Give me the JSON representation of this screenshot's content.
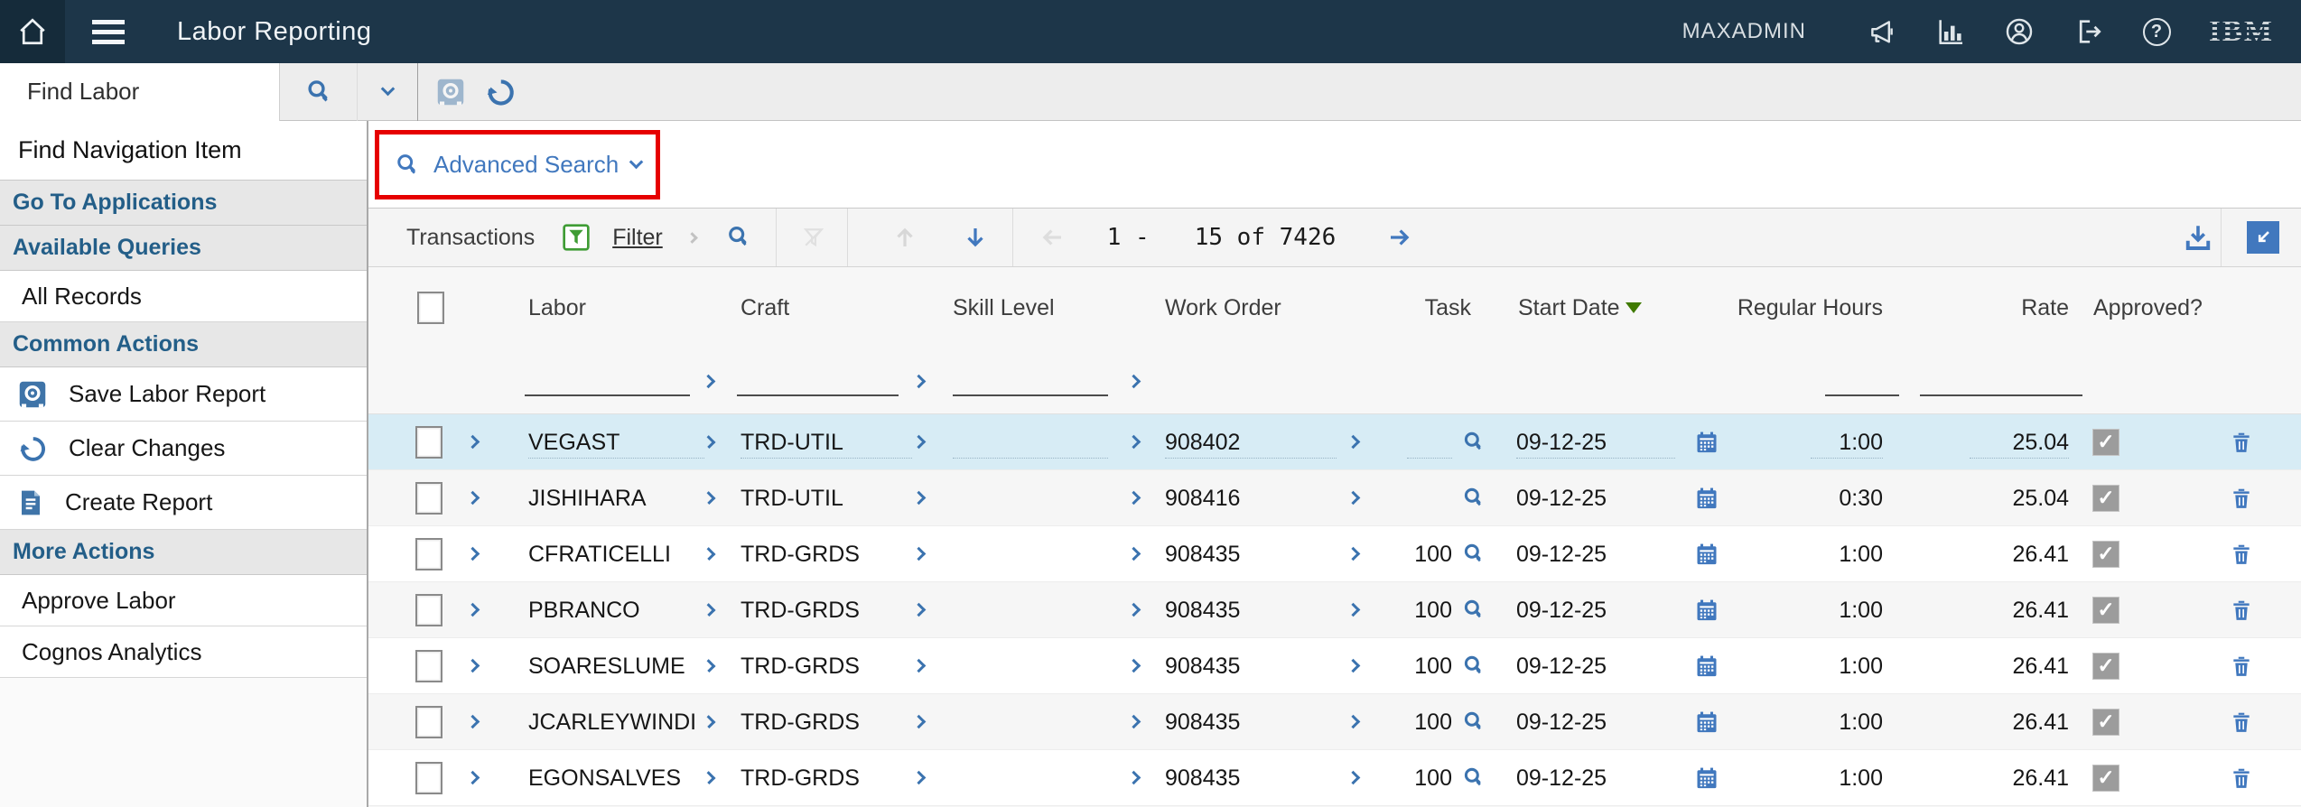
{
  "topbar": {
    "title": "Labor Reporting",
    "username": "MAXADMIN",
    "icons": [
      "home-icon",
      "menu-icon",
      "announcements-icon",
      "reports-icon",
      "profile-icon",
      "sign-out-icon",
      "help-icon",
      "ibm-logo"
    ]
  },
  "findbar": {
    "value": "Find Labor",
    "icons": [
      "search-icon",
      "chevron-down-icon",
      "save-icon-disabled",
      "undo-icon"
    ]
  },
  "sidebar": {
    "search_placeholder": "Find Navigation Item",
    "sections": [
      {
        "label": "Go To Applications",
        "type": "header"
      },
      {
        "label": "Available Queries",
        "type": "header"
      },
      {
        "label": "All Records",
        "type": "item"
      },
      {
        "label": "Common Actions",
        "type": "header"
      },
      {
        "label": "Save Labor Report",
        "type": "item",
        "icon": "save-icon"
      },
      {
        "label": "Clear Changes",
        "type": "item",
        "icon": "undo-icon"
      },
      {
        "label": "Create Report",
        "type": "item",
        "icon": "report-icon"
      },
      {
        "label": "More Actions",
        "type": "header"
      },
      {
        "label": "Approve Labor",
        "type": "item"
      },
      {
        "label": "Cognos Analytics",
        "type": "item"
      }
    ]
  },
  "advanced_search": {
    "label": "Advanced Search",
    "icons": [
      "search-icon",
      "chevron-down-icon"
    ],
    "annotation": "red-box-highlight"
  },
  "toolbar": {
    "table_title": "Transactions",
    "filter_label": "Filter",
    "page_start": "1 -",
    "page_total": "15 of 7426",
    "icons": [
      "filter-icon",
      "search-icon",
      "clear-filter-icon",
      "move-up-icon",
      "move-down-icon",
      "previous-page-icon",
      "next-page-icon",
      "download-icon",
      "minimize-icon"
    ]
  },
  "table": {
    "columns": [
      "Labor",
      "Craft",
      "Skill Level",
      "Work Order",
      "Task",
      "Start Date",
      "Regular Hours",
      "Rate",
      "Approved?"
    ],
    "sort": {
      "column": "Start Date",
      "direction": "desc"
    },
    "rows": [
      {
        "labor": "VEGAST",
        "craft": "TRD-UTIL",
        "skill": "",
        "work_order": "908402",
        "task": "",
        "start_date": "09-12-25",
        "regular_hours": "1:00",
        "rate": "25.04",
        "approved": true,
        "selected": true
      },
      {
        "labor": "JISHIHARA",
        "craft": "TRD-UTIL",
        "skill": "",
        "work_order": "908416",
        "task": "",
        "start_date": "09-12-25",
        "regular_hours": "0:30",
        "rate": "25.04",
        "approved": true,
        "selected": false
      },
      {
        "labor": "CFRATICELLI",
        "craft": "TRD-GRDS",
        "skill": "",
        "work_order": "908435",
        "task": "100",
        "start_date": "09-12-25",
        "regular_hours": "1:00",
        "rate": "26.41",
        "approved": true,
        "selected": false
      },
      {
        "labor": "PBRANCO",
        "craft": "TRD-GRDS",
        "skill": "",
        "work_order": "908435",
        "task": "100",
        "start_date": "09-12-25",
        "regular_hours": "1:00",
        "rate": "26.41",
        "approved": true,
        "selected": false
      },
      {
        "labor": "SOARESLUME",
        "craft": "TRD-GRDS",
        "skill": "",
        "work_order": "908435",
        "task": "100",
        "start_date": "09-12-25",
        "regular_hours": "1:00",
        "rate": "26.41",
        "approved": true,
        "selected": false
      },
      {
        "labor": "JCARLEYWINDI",
        "craft": "TRD-GRDS",
        "skill": "",
        "work_order": "908435",
        "task": "100",
        "start_date": "09-12-25",
        "regular_hours": "1:00",
        "rate": "26.41",
        "approved": true,
        "selected": false
      },
      {
        "labor": "EGONSALVES",
        "craft": "TRD-GRDS",
        "skill": "",
        "work_order": "908435",
        "task": "100",
        "start_date": "09-12-25",
        "regular_hours": "1:00",
        "rate": "26.41",
        "approved": true,
        "selected": false
      }
    ]
  },
  "colors": {
    "navbar": "#1d3649",
    "accent_blue": "#4178be",
    "chevron_blue": "#3b73af",
    "selected_row": "#d7ecf5",
    "annotation_red": "#e60000",
    "sort_green": "#3f7a00",
    "filter_icon_green": "#3f9c35"
  }
}
